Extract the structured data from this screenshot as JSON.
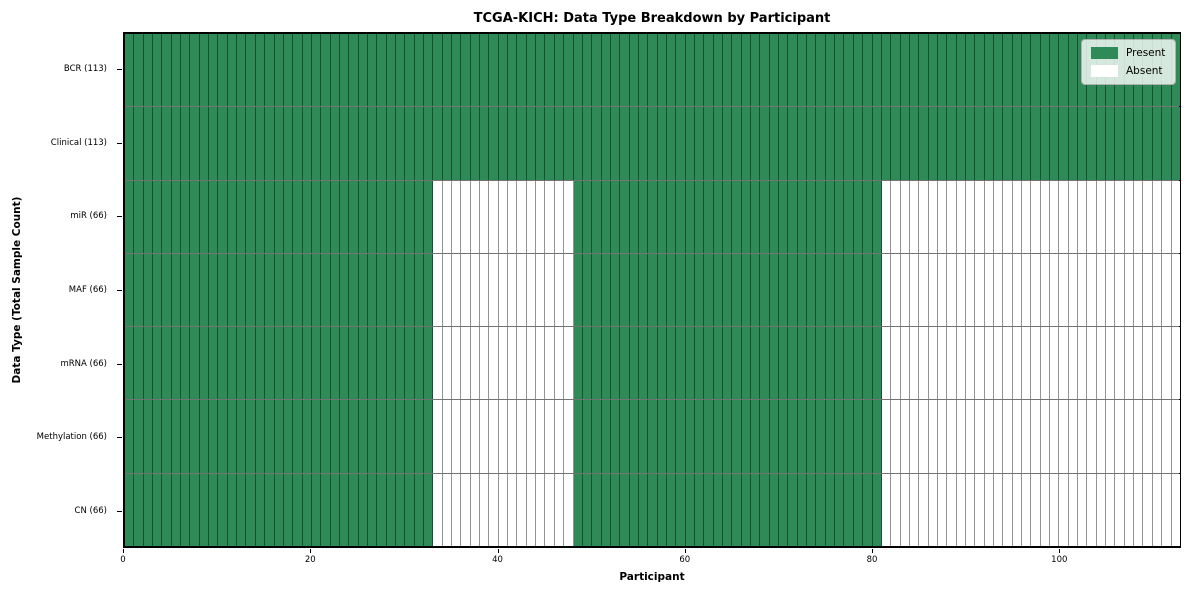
{
  "figure": {
    "title": "TCGA-KICH: Data Type Breakdown by Participant",
    "xlabel": "Participant",
    "ylabel": "Data Type (Total Sample Count)"
  },
  "legend": {
    "items": [
      {
        "label": "Present",
        "color": "#2e8b57"
      },
      {
        "label": "Absent",
        "color": "#ffffff"
      }
    ]
  },
  "chart_data": {
    "type": "heatmap",
    "title": "TCGA-KICH: Data Type Breakdown by Participant",
    "xlabel": "Participant",
    "ylabel": "Data Type (Total Sample Count)",
    "xlim": [
      0,
      113
    ],
    "x_ticks": [
      0,
      20,
      40,
      60,
      80,
      100
    ],
    "n_participants": 113,
    "grid": false,
    "legend_position": "upper right",
    "legend_entries": [
      "Present",
      "Absent"
    ],
    "colors": {
      "present": "#2e8b57",
      "absent": "#ffffff",
      "cell_edge": "rgba(0,0,0,0.42)"
    },
    "rows": [
      {
        "label": "BCR (113)",
        "total_samples": 113,
        "present_ranges": [
          [
            0,
            113
          ]
        ]
      },
      {
        "label": "Clinical (113)",
        "total_samples": 113,
        "present_ranges": [
          [
            0,
            113
          ]
        ]
      },
      {
        "label": "miR (66)",
        "total_samples": 66,
        "present_ranges": [
          [
            0,
            33
          ],
          [
            48,
            81
          ]
        ]
      },
      {
        "label": "MAF (66)",
        "total_samples": 66,
        "present_ranges": [
          [
            0,
            33
          ],
          [
            48,
            81
          ]
        ]
      },
      {
        "label": "mRNA (66)",
        "total_samples": 66,
        "present_ranges": [
          [
            0,
            33
          ],
          [
            48,
            81
          ]
        ]
      },
      {
        "label": "Methylation (66)",
        "total_samples": 66,
        "present_ranges": [
          [
            0,
            33
          ],
          [
            48,
            81
          ]
        ]
      },
      {
        "label": "CN (66)",
        "total_samples": 66,
        "present_ranges": [
          [
            0,
            33
          ],
          [
            48,
            81
          ]
        ]
      }
    ]
  }
}
